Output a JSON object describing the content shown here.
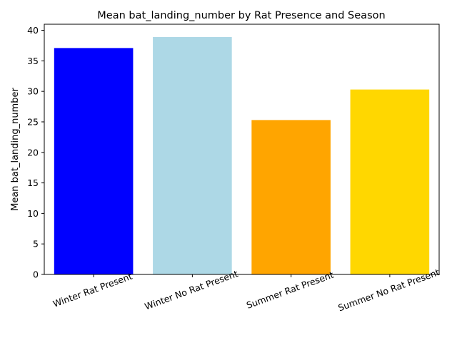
{
  "chart_data": {
    "type": "bar",
    "title": "Mean bat_landing_number by Rat Presence and Season",
    "xlabel": "",
    "ylabel": "Mean bat_landing_number",
    "categories": [
      "Winter Rat Present",
      "Winter No Rat Present",
      "Summer Rat Present",
      "Summer No Rat Present"
    ],
    "values": [
      37.1,
      38.9,
      25.3,
      30.3
    ],
    "colors": [
      "#0000ff",
      "#add8e6",
      "#ffa500",
      "#ffd700"
    ],
    "ylim": [
      0,
      41
    ],
    "yticks": [
      0,
      5,
      10,
      15,
      20,
      25,
      30,
      35,
      40
    ],
    "grid": false,
    "legend": "none"
  }
}
